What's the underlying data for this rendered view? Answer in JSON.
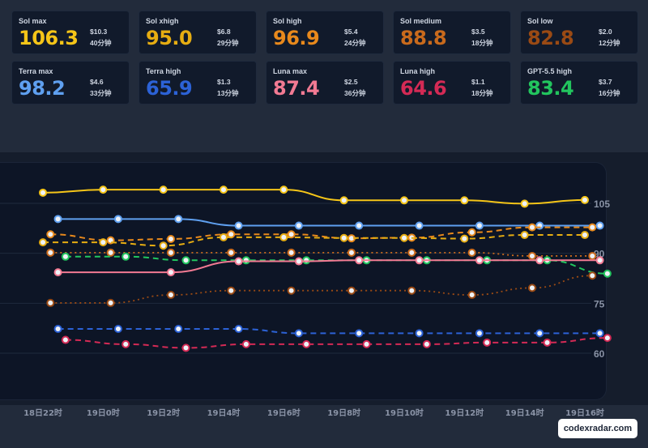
{
  "cards": [
    {
      "name": "Sol max",
      "score": "106.3",
      "cost": "$10.3",
      "time": "40分钟",
      "color": "#f5c518"
    },
    {
      "name": "Sol xhigh",
      "score": "95.0",
      "cost": "$6.8",
      "time": "29分钟",
      "color": "#e6ad12"
    },
    {
      "name": "Sol high",
      "score": "96.9",
      "cost": "$5.4",
      "time": "24分钟",
      "color": "#e8891c"
    },
    {
      "name": "Sol medium",
      "score": "88.8",
      "cost": "$3.5",
      "time": "18分钟",
      "color": "#c96a1c"
    },
    {
      "name": "Sol low",
      "score": "82.8",
      "cost": "$2.0",
      "time": "12分钟",
      "color": "#9a4a14"
    },
    {
      "name": "Terra max",
      "score": "98.2",
      "cost": "$4.6",
      "time": "33分钟",
      "color": "#5fa0f0"
    },
    {
      "name": "Terra high",
      "score": "65.9",
      "cost": "$1.3",
      "time": "13分钟",
      "color": "#2c62d6"
    },
    {
      "name": "Luna max",
      "score": "87.4",
      "cost": "$2.5",
      "time": "36分钟",
      "color": "#f27a93"
    },
    {
      "name": "Luna high",
      "score": "64.6",
      "cost": "$1.1",
      "time": "18分钟",
      "color": "#d42a55"
    },
    {
      "name": "GPT-5.5 high",
      "score": "83.4",
      "cost": "$3.7",
      "time": "16分钟",
      "color": "#22c55e"
    }
  ],
  "chart_data": {
    "type": "line",
    "x": [
      "17:30",
      "18:15",
      "18:45",
      "19:15",
      "19:45",
      "20:15",
      "20:45",
      "21:15",
      "21:45",
      "22:15",
      "22:45",
      "23:15",
      "23:45",
      "0:15",
      "0:45",
      "1:15",
      "1:45",
      "2:15",
      "2:45",
      "3:15",
      "3:45",
      "4:15",
      "4:45",
      "5:15",
      "5:45",
      "6:15",
      "6:45",
      "7:15",
      "7:45",
      "8:15",
      "8:45",
      "9:15",
      "9:45",
      "10:15",
      "10:45",
      "11:15",
      "11:45",
      "12:15",
      "12:45",
      "13:15",
      "13:45",
      "14:15",
      "14:45",
      "15:15",
      "15:45",
      "16:15",
      "16:30"
    ],
    "x_tick_labels": [
      "18日22时",
      "19日0时",
      "19日2时",
      "19日4时",
      "19日6时",
      "19日8时",
      "19日10时",
      "19日12时",
      "19日14时",
      "19日16时"
    ],
    "y_ticks": [
      60,
      75,
      90,
      105
    ],
    "ylim": [
      46,
      115
    ],
    "series": [
      {
        "name": "Sol max",
        "color": "#f5c518",
        "style": "solid",
        "points": [
          {
            "x": "22:00",
            "y": 108.2
          },
          {
            "x": "0:00",
            "y": 109.1
          },
          {
            "x": "2:00",
            "y": 109.1
          },
          {
            "x": "4:00",
            "y": 109.1
          },
          {
            "x": "6:00",
            "y": 109.1
          },
          {
            "x": "8:00",
            "y": 105.9
          },
          {
            "x": "10:00",
            "y": 105.9
          },
          {
            "x": "12:00",
            "y": 105.9
          },
          {
            "x": "14:00",
            "y": 104.9
          },
          {
            "x": "16:00",
            "y": 106.0
          }
        ]
      },
      {
        "name": "Terra max",
        "color": "#5fa0f0",
        "style": "solid",
        "points": [
          {
            "x": "22:30",
            "y": 100.3
          },
          {
            "x": "0:30",
            "y": 100.3
          },
          {
            "x": "2:30",
            "y": 100.3
          },
          {
            "x": "4:30",
            "y": 98.3
          },
          {
            "x": "6:30",
            "y": 98.3
          },
          {
            "x": "8:30",
            "y": 98.3
          },
          {
            "x": "10:30",
            "y": 98.3
          },
          {
            "x": "12:30",
            "y": 98.3
          },
          {
            "x": "14:30",
            "y": 98.3
          },
          {
            "x": "16:30",
            "y": 98.3
          }
        ]
      },
      {
        "name": "Sol high",
        "color": "#e8891c",
        "style": "dashed",
        "points": [
          {
            "x": "22:15",
            "y": 95.7
          },
          {
            "x": "0:15",
            "y": 93.9
          },
          {
            "x": "2:15",
            "y": 94.3
          },
          {
            "x": "4:15",
            "y": 95.7
          },
          {
            "x": "6:15",
            "y": 95.7
          },
          {
            "x": "8:15",
            "y": 94.5
          },
          {
            "x": "10:15",
            "y": 94.7
          },
          {
            "x": "12:15",
            "y": 96.3
          },
          {
            "x": "14:15",
            "y": 97.8
          },
          {
            "x": "16:15",
            "y": 97.8
          }
        ]
      },
      {
        "name": "Sol xhigh",
        "color": "#e6ad12",
        "style": "dashed",
        "points": [
          {
            "x": "22:00",
            "y": 93.3
          },
          {
            "x": "0:00",
            "y": 93.3
          },
          {
            "x": "2:00",
            "y": 92.3
          },
          {
            "x": "4:00",
            "y": 94.8
          },
          {
            "x": "6:00",
            "y": 94.8
          },
          {
            "x": "8:00",
            "y": 94.6
          },
          {
            "x": "10:00",
            "y": 94.6
          },
          {
            "x": "12:00",
            "y": 94.4
          },
          {
            "x": "14:00",
            "y": 95.5
          },
          {
            "x": "16:00",
            "y": 95.5
          }
        ]
      },
      {
        "name": "Sol medium",
        "color": "#c96a1c",
        "style": "dotted",
        "points": [
          {
            "x": "22:15",
            "y": 90.2
          },
          {
            "x": "0:15",
            "y": 90.2
          },
          {
            "x": "2:15",
            "y": 90.2
          },
          {
            "x": "4:15",
            "y": 90.2
          },
          {
            "x": "6:15",
            "y": 90.2
          },
          {
            "x": "8:15",
            "y": 90.2
          },
          {
            "x": "10:15",
            "y": 90.2
          },
          {
            "x": "12:15",
            "y": 90.2
          },
          {
            "x": "14:15",
            "y": 89.2
          },
          {
            "x": "16:15",
            "y": 89.2
          }
        ]
      },
      {
        "name": "GPT-5.5 high",
        "color": "#22c55e",
        "style": "dashed",
        "points": [
          {
            "x": "22:45",
            "y": 89.0
          },
          {
            "x": "0:45",
            "y": 89.0
          },
          {
            "x": "2:45",
            "y": 87.9
          },
          {
            "x": "4:45",
            "y": 87.9
          },
          {
            "x": "6:45",
            "y": 87.9
          },
          {
            "x": "8:45",
            "y": 87.9
          },
          {
            "x": "10:45",
            "y": 87.9
          },
          {
            "x": "12:45",
            "y": 87.9
          },
          {
            "x": "14:45",
            "y": 87.9
          },
          {
            "x": "16:45",
            "y": 83.9
          }
        ]
      },
      {
        "name": "Luna max",
        "color": "#f27a93",
        "style": "solid",
        "points": [
          {
            "x": "22:30",
            "y": 84.3
          },
          {
            "x": "2:15",
            "y": 84.3
          },
          {
            "x": "4:30",
            "y": 87.6
          },
          {
            "x": "6:30",
            "y": 87.6
          },
          {
            "x": "8:30",
            "y": 87.9
          },
          {
            "x": "10:30",
            "y": 87.9
          },
          {
            "x": "12:30",
            "y": 87.9
          },
          {
            "x": "14:30",
            "y": 87.9
          },
          {
            "x": "16:30",
            "y": 87.9
          }
        ]
      },
      {
        "name": "Sol low",
        "color": "#9a4a14",
        "style": "dotted",
        "points": [
          {
            "x": "22:15",
            "y": 75.1
          },
          {
            "x": "0:15",
            "y": 75.1
          },
          {
            "x": "2:15",
            "y": 77.5
          },
          {
            "x": "4:15",
            "y": 78.8
          },
          {
            "x": "6:15",
            "y": 78.8
          },
          {
            "x": "8:15",
            "y": 78.8
          },
          {
            "x": "10:15",
            "y": 78.8
          },
          {
            "x": "12:15",
            "y": 77.5
          },
          {
            "x": "14:15",
            "y": 79.6
          },
          {
            "x": "16:15",
            "y": 83.3
          }
        ]
      },
      {
        "name": "Terra high",
        "color": "#2c62d6",
        "style": "dashed",
        "points": [
          {
            "x": "22:30",
            "y": 67.3
          },
          {
            "x": "0:30",
            "y": 67.3
          },
          {
            "x": "2:30",
            "y": 67.3
          },
          {
            "x": "4:30",
            "y": 67.3
          },
          {
            "x": "6:30",
            "y": 66.0
          },
          {
            "x": "8:30",
            "y": 66.0
          },
          {
            "x": "10:30",
            "y": 66.0
          },
          {
            "x": "12:30",
            "y": 66.0
          },
          {
            "x": "14:30",
            "y": 66.0
          },
          {
            "x": "16:30",
            "y": 66.0
          }
        ]
      },
      {
        "name": "Luna high",
        "color": "#d42a55",
        "style": "dashed",
        "points": [
          {
            "x": "22:45",
            "y": 64.0
          },
          {
            "x": "0:45",
            "y": 62.7
          },
          {
            "x": "2:45",
            "y": 61.6
          },
          {
            "x": "4:45",
            "y": 62.7
          },
          {
            "x": "6:45",
            "y": 62.7
          },
          {
            "x": "8:45",
            "y": 62.7
          },
          {
            "x": "10:45",
            "y": 62.7
          },
          {
            "x": "12:45",
            "y": 63.2
          },
          {
            "x": "14:45",
            "y": 63.2
          },
          {
            "x": "16:45",
            "y": 64.6
          }
        ]
      }
    ]
  },
  "watermark": "codexradar.com"
}
